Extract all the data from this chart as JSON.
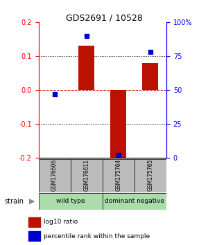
{
  "title": "GDS2691 / 10528",
  "samples": [
    "GSM176606",
    "GSM176611",
    "GSM175764",
    "GSM175765"
  ],
  "log10_ratio": [
    0.0,
    0.13,
    -0.2,
    0.08
  ],
  "percentile_rank": [
    47,
    90,
    2,
    78
  ],
  "groups": [
    {
      "label": "wild type",
      "color": "#aaddaa"
    },
    {
      "label": "dominant negative",
      "color": "#aaddaa"
    }
  ],
  "ylim_left": [
    -0.2,
    0.2
  ],
  "ylim_right": [
    0,
    100
  ],
  "yticks_left": [
    -0.2,
    -0.1,
    0.0,
    0.1,
    0.2
  ],
  "yticks_right": [
    0,
    25,
    50,
    75,
    100
  ],
  "ytick_labels_right": [
    "0",
    "25",
    "50",
    "75",
    "100%"
  ],
  "bar_color": "#bb1100",
  "dot_color": "#0000cc",
  "zero_line_color": "#cc0000",
  "sample_box_color": "#bbbbbb",
  "background_color": "#ffffff",
  "bar_width": 0.5,
  "legend_bar_label": "log10 ratio",
  "legend_dot_label": "percentile rank within the sample"
}
